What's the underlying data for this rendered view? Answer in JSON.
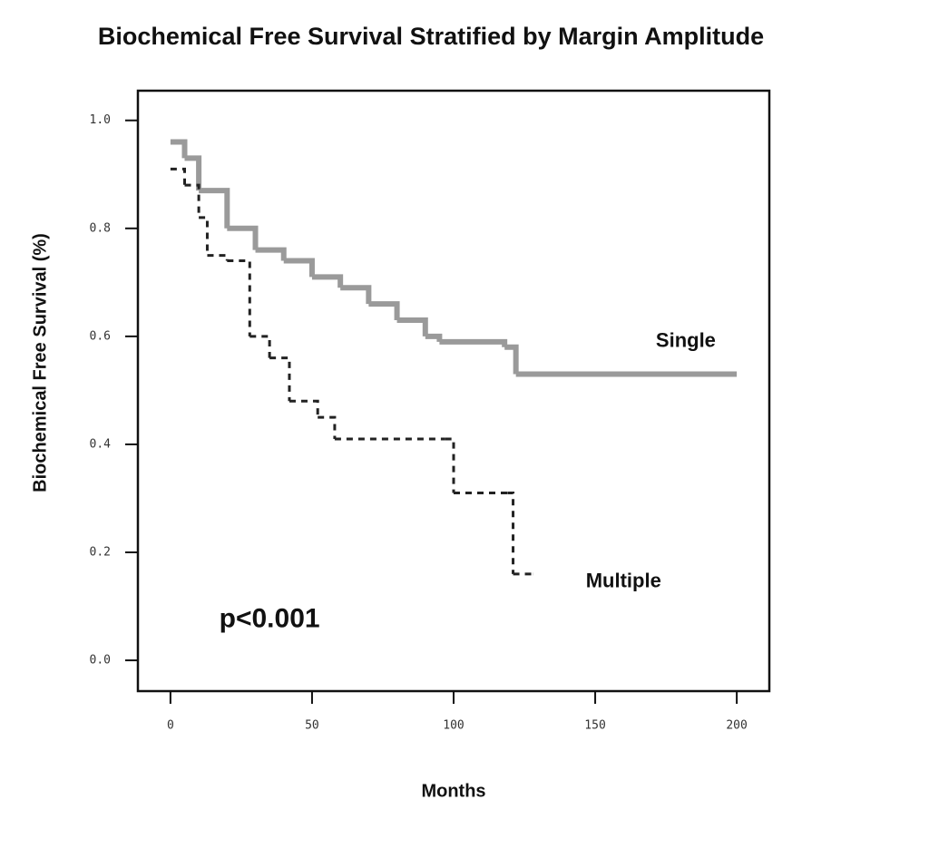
{
  "chart_data": {
    "type": "line",
    "drawstyle": "steps-post",
    "title": "Biochemical Free Survival Stratified by Margin Amplitude",
    "xlabel": "Months",
    "ylabel": "Biochemical Free Survival (%)",
    "annotations": [
      {
        "text": "Single",
        "x": 182,
        "y": 0.59
      },
      {
        "text": "Multiple",
        "x": 160,
        "y": 0.145
      },
      {
        "text": "p<0.001",
        "x": 35,
        "y": 0.075
      }
    ],
    "xlim": [
      -11.5,
      211.5
    ],
    "ylim": [
      -0.057,
      1.055
    ],
    "xticks": [
      0,
      50,
      100,
      150,
      200
    ],
    "yticks": [
      {
        "value": 0,
        "label": "0.0"
      },
      {
        "value": 0.2,
        "label": "0.2"
      },
      {
        "value": 0.4,
        "label": "0.4"
      },
      {
        "value": 0.6,
        "label": "0.6"
      },
      {
        "value": 0.8,
        "label": "0.8"
      },
      {
        "value": 1,
        "label": "1.0"
      }
    ],
    "series": [
      {
        "name": "Single",
        "color": "#9a9a9a",
        "dashed": false,
        "x": [
          0,
          5,
          10,
          20,
          30,
          40,
          50,
          60,
          70,
          80,
          90,
          95,
          118,
          122,
          200
        ],
        "values": [
          0.96,
          0.93,
          0.87,
          0.8,
          0.76,
          0.74,
          0.71,
          0.69,
          0.66,
          0.63,
          0.6,
          0.59,
          0.58,
          0.53,
          0.53
        ]
      },
      {
        "name": "Multiple",
        "color": "#222222",
        "dashed": true,
        "x": [
          0,
          5,
          10,
          13,
          20,
          28,
          35,
          42,
          52,
          58,
          97,
          100,
          119,
          121,
          128
        ],
        "values": [
          0.91,
          0.88,
          0.82,
          0.75,
          0.74,
          0.6,
          0.56,
          0.48,
          0.45,
          0.41,
          0.41,
          0.31,
          0.31,
          0.16,
          0.16
        ]
      }
    ]
  }
}
